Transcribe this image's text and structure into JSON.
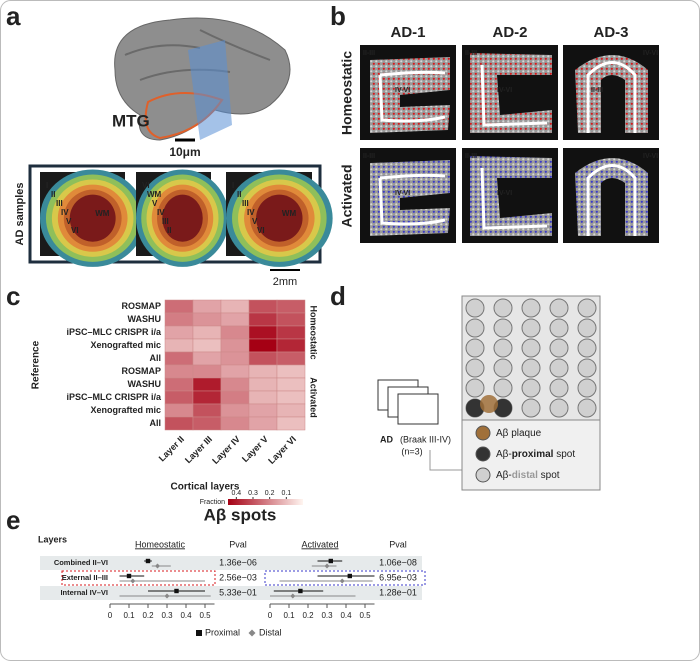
{
  "panel_labels": [
    "a",
    "b",
    "c",
    "d",
    "e"
  ],
  "panel_a": {
    "region": "MTG",
    "scale": "10μm",
    "samples_label": "AD samples",
    "scale2": "2mm",
    "slices": [
      [
        "I",
        "II",
        "III",
        "IV",
        "V",
        "VI",
        "WM"
      ],
      [
        "VI",
        "WM",
        "V",
        "IV",
        "III",
        "II"
      ],
      [
        "I",
        "II",
        "III",
        "IV",
        "V",
        "VI",
        "WM"
      ]
    ]
  },
  "panel_b": {
    "columns": [
      "AD-1",
      "AD-2",
      "AD-3"
    ],
    "rows": [
      {
        "name": "Homeostatic",
        "color": "#d7191c"
      },
      {
        "name": "Activated",
        "color": "#3a3ac8"
      }
    ],
    "region_labels": [
      [
        [
          "II-III",
          "IV-VI"
        ],
        [
          "II-III",
          "IV-VI"
        ],
        [
          "IV-VI",
          "II-III"
        ]
      ],
      [
        [
          "II-III",
          "IV-VI"
        ],
        [
          "II-III",
          "IV-VI"
        ],
        [
          "IV-VI"
        ]
      ]
    ]
  },
  "panel_c": {
    "type": "heatmap",
    "ylabel": "Reference",
    "xlabel": "Cortical layers",
    "columns": [
      "Layer II",
      "Layer III",
      "Layer IV",
      "Layer V",
      "Layer VI"
    ],
    "rows": [
      "ROSMAP",
      "WASHU",
      "iPSC–MLC CRISPR i/a",
      "Xenografted mic",
      "All",
      "ROSMAP",
      "WASHU",
      "iPSC–MLC CRISPR i/a",
      "Xenografted mic",
      "All"
    ],
    "groups": [
      {
        "name": "Homeostatic",
        "color": "#d7191c"
      },
      {
        "name": "Activated",
        "color": "#3a3ac8"
      }
    ],
    "values": [
      [
        0.25,
        0.15,
        0.12,
        0.3,
        0.28
      ],
      [
        0.22,
        0.18,
        0.15,
        0.35,
        0.3
      ],
      [
        0.15,
        0.12,
        0.2,
        0.42,
        0.35
      ],
      [
        0.12,
        0.1,
        0.18,
        0.45,
        0.38
      ],
      [
        0.25,
        0.15,
        0.18,
        0.3,
        0.28
      ],
      [
        0.2,
        0.2,
        0.15,
        0.12,
        0.1
      ],
      [
        0.25,
        0.4,
        0.2,
        0.12,
        0.1
      ],
      [
        0.28,
        0.38,
        0.22,
        0.12,
        0.1
      ],
      [
        0.2,
        0.3,
        0.18,
        0.15,
        0.12
      ],
      [
        0.3,
        0.28,
        0.2,
        0.15,
        0.1
      ]
    ],
    "clim": [
      0,
      0.45
    ],
    "legend_title": "Fraction",
    "legend_ticks": [
      0.4,
      0.3,
      0.2,
      0.1
    ]
  },
  "panel_d": {
    "cohort": "AD",
    "cohort_detail": "(Braak III-IV)",
    "n": "(n=3)",
    "legend": [
      {
        "parts": [
          "Aβ plaque"
        ],
        "color": "#a0703a"
      },
      {
        "parts": [
          "Aβ-",
          "proximal",
          " spot"
        ],
        "color": "#333333"
      },
      {
        "parts": [
          "Aβ-",
          "distal",
          " spot"
        ],
        "color": "#d0d0d0"
      }
    ]
  },
  "panel_e": {
    "title": "Aβ spots",
    "layers_header": "Layers",
    "pval_header": "Pval",
    "rows": [
      "Combined II–VI",
      "External II–III",
      "Internal IV–VI"
    ],
    "xlim": [
      0,
      0.55
    ],
    "xticks": [
      0,
      0.1,
      0.2,
      0.3,
      0.4,
      0.5
    ],
    "plots": [
      {
        "name": "Homeostatic",
        "color": "#d7191c",
        "pvals": [
          "1.36e−06",
          "2.56e−03",
          "5.33e−01"
        ],
        "series": [
          {
            "name": "Proximal",
            "color": "#111111",
            "values": [
              0.2,
              0.1,
              0.35
            ],
            "lower": [
              0.18,
              0.05,
              0.2
            ],
            "upper": [
              0.22,
              0.18,
              0.5
            ]
          },
          {
            "name": "Distal",
            "color": "#888888",
            "values": [
              0.25,
              0.12,
              0.3
            ],
            "lower": [
              0.22,
              0.05,
              0.05
            ],
            "upper": [
              0.32,
              0.5,
              0.53
            ]
          }
        ]
      },
      {
        "name": "Activated",
        "color": "#3a3ac8",
        "pvals": [
          "1.06e−08",
          "6.95e−03",
          "1.28e−01"
        ],
        "series": [
          {
            "name": "Proximal",
            "color": "#111111",
            "values": [
              0.32,
              0.42,
              0.16
            ],
            "lower": [
              0.25,
              0.25,
              0.02
            ],
            "upper": [
              0.38,
              0.55,
              0.28
            ]
          },
          {
            "name": "Distal",
            "color": "#888888",
            "values": [
              0.3,
              0.38,
              0.12
            ],
            "lower": [
              0.22,
              0.05,
              0.0
            ],
            "upper": [
              0.35,
              0.54,
              0.45
            ]
          }
        ]
      }
    ]
  }
}
